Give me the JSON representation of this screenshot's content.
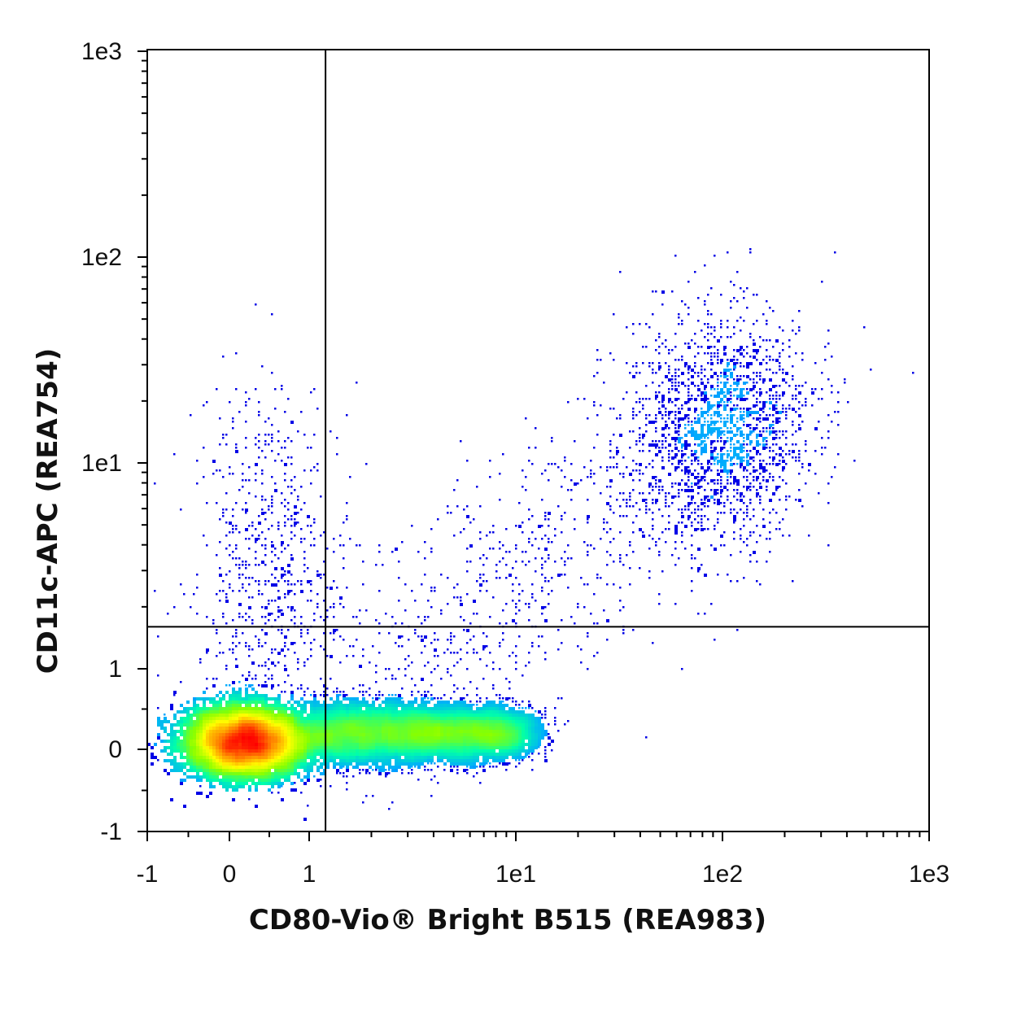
{
  "chart_data": {
    "type": "scatter",
    "subtype": "flow-cytometry-density-dot-plot",
    "xlabel": "CD80-Vio® Bright B515 (REA983)",
    "ylabel": "CD11c-APC (REA754)",
    "x_scale": "biexponential (linear near zero, log above 1)",
    "y_scale": "biexponential (linear near zero, log above 1)",
    "xlim": [
      -1,
      1000
    ],
    "ylim": [
      -1,
      1000
    ],
    "x_ticks": [
      "-1",
      "0",
      "1",
      "1e1",
      "1e2",
      "1e3"
    ],
    "y_ticks": [
      "-1",
      "0",
      "1",
      "1e1",
      "1e2",
      "1e3"
    ],
    "gate": {
      "x": 1.2,
      "y": 1.6
    },
    "grid": false,
    "legend": "none",
    "density_colors": [
      "#0000ff",
      "#00aaff",
      "#00ffaa",
      "#88ff00",
      "#ffff00",
      "#ff8800",
      "#ff0000"
    ],
    "populations": [
      {
        "x_center": 0.2,
        "y_center": 0.1,
        "relative_density": 1.0
      },
      {
        "x_center": 3.0,
        "y_center": 0.2,
        "relative_density": 0.35
      },
      {
        "x_center": 100,
        "y_center": 15,
        "relative_density": 0.12
      }
    ]
  }
}
